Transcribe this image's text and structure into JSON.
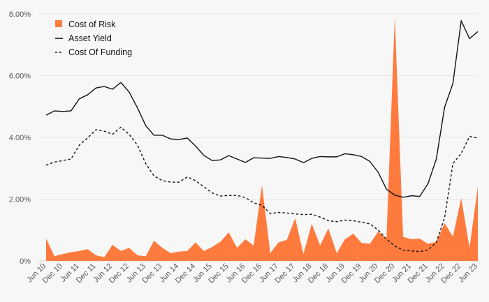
{
  "chart_data": {
    "type": "area",
    "title": "",
    "xlabel": "",
    "ylabel": "",
    "ylim": [
      0,
      8
    ],
    "y_ticks": [
      0,
      2,
      4,
      6,
      8
    ],
    "y_tick_labels": [
      "0%",
      "2.00%",
      "4.00%",
      "6.00%",
      "8.00%"
    ],
    "grid": true,
    "legend_position": "top-left",
    "categories": [
      "Jun 10",
      "Sep 10",
      "Dec 10",
      "Mar 11",
      "Jun 11",
      "Sep 11",
      "Dec 11",
      "Mar 12",
      "Jun 12",
      "Sep 12",
      "Dec 12",
      "Mar 13",
      "Jun 13",
      "Sep 13",
      "Dec 13",
      "Mar 14",
      "Jun 14",
      "Sep 14",
      "Dec 14",
      "Mar 15",
      "Jun 15",
      "Sep 15",
      "Dec 15",
      "Mar 16",
      "Jun 16",
      "Sep 16",
      "Dec 16",
      "Mar 17",
      "Jun 17",
      "Sep 17",
      "Dec 17",
      "Mar 18",
      "Jun 18",
      "Sep 18",
      "Dec 18",
      "Mar 19",
      "Jun 19",
      "Sep 19",
      "Dec 19",
      "Mar 20",
      "Jun 20",
      "Sep 20",
      "Dec 20",
      "Mar 21",
      "Jun 21",
      "Sep 21",
      "Dec 21",
      "Mar 22",
      "Jun 22",
      "Sep 22",
      "Dec 22",
      "Mar 23",
      "Jun 23"
    ],
    "x_tick_labels": [
      "Jun 10",
      "Dec 10",
      "Jun 11",
      "Dec 11",
      "Jun 12",
      "Dec 12",
      "Jun 13",
      "Dec 13",
      "Jun 14",
      "Dec 14",
      "Jun 15",
      "Dec 15",
      "Jun 16",
      "Dec 16",
      "Jun 17",
      "Dec 17",
      "Jun 18",
      "Dec 18",
      "Jun 19",
      "Dec 19",
      "Jun 20",
      "Dec 20",
      "Jun 21",
      "Dec 21",
      "Jun 22",
      "Dec 22",
      "Jun 23"
    ],
    "series": [
      {
        "name": "Cost of Risk",
        "style": "area",
        "color": "#ff7a3d",
        "values": [
          0.72,
          0.15,
          0.22,
          0.28,
          0.32,
          0.38,
          0.18,
          0.12,
          0.52,
          0.32,
          0.42,
          0.18,
          0.15,
          0.65,
          0.42,
          0.25,
          0.3,
          0.32,
          0.6,
          0.32,
          0.45,
          0.62,
          0.92,
          0.42,
          0.7,
          0.5,
          2.45,
          0.25,
          0.6,
          0.68,
          1.38,
          0.22,
          1.2,
          0.5,
          1.05,
          0.25,
          0.7,
          0.88,
          0.58,
          0.55,
          0.95,
          0.72,
          7.92,
          0.78,
          0.7,
          0.72,
          0.55,
          0.62,
          1.22,
          0.78,
          2.03,
          0.42,
          2.4
        ]
      },
      {
        "name": "Asset Yield",
        "style": "solid",
        "color": "#111111",
        "values": [
          4.72,
          4.86,
          4.84,
          4.86,
          5.25,
          5.38,
          5.6,
          5.65,
          5.56,
          5.78,
          5.47,
          4.96,
          4.38,
          4.07,
          4.07,
          3.95,
          3.93,
          3.98,
          3.72,
          3.42,
          3.25,
          3.27,
          3.41,
          3.3,
          3.19,
          3.34,
          3.33,
          3.32,
          3.38,
          3.35,
          3.3,
          3.18,
          3.32,
          3.38,
          3.37,
          3.37,
          3.47,
          3.44,
          3.38,
          3.22,
          2.87,
          2.32,
          2.13,
          2.06,
          2.11,
          2.09,
          2.5,
          3.3,
          4.98,
          5.75,
          7.78,
          7.2,
          7.43
        ]
      },
      {
        "name": "Cost Of Funding",
        "style": "dashed",
        "color": "#111111",
        "values": [
          3.1,
          3.2,
          3.25,
          3.3,
          3.75,
          3.98,
          4.25,
          4.2,
          4.1,
          4.33,
          4.1,
          3.75,
          3.15,
          2.75,
          2.6,
          2.55,
          2.55,
          2.72,
          2.6,
          2.4,
          2.2,
          2.1,
          2.12,
          2.12,
          2.05,
          1.88,
          1.8,
          1.53,
          1.57,
          1.55,
          1.52,
          1.5,
          1.51,
          1.42,
          1.3,
          1.27,
          1.32,
          1.3,
          1.25,
          1.2,
          1.0,
          0.7,
          0.48,
          0.35,
          0.32,
          0.3,
          0.35,
          0.6,
          1.4,
          3.15,
          3.48,
          4.03,
          3.98
        ]
      }
    ]
  }
}
